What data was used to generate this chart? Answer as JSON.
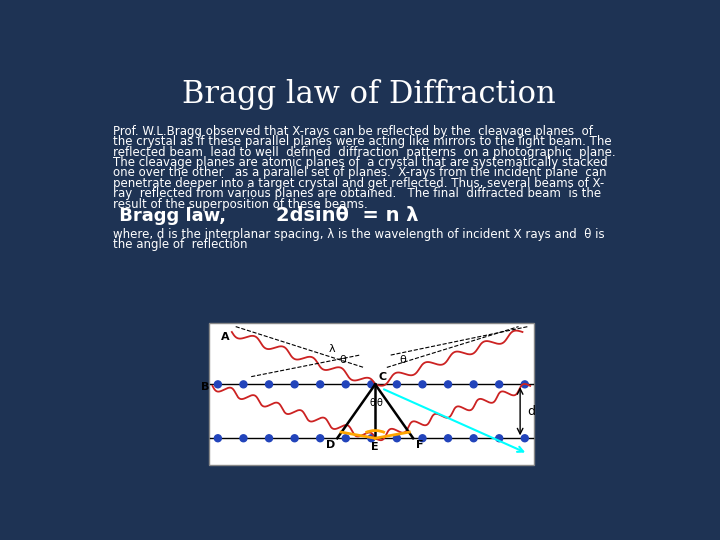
{
  "title": "Bragg law of Diffraction",
  "title_fontsize": 22,
  "title_color": "white",
  "bg_color": "#1e3354",
  "body_lines": [
    "Prof. W.L.Bragg observed that X-rays can be reflected by the  cleavage planes  of",
    "the crystal as if these parallel planes were acting like mirrors to the light beam. The",
    "reflected beam  lead to well  defined  diffraction  patterns  on a photographic  plane.",
    "The cleavage planes are atomic planes of  a crystal that are systematically stacked",
    "one over the other   as a parallel set of planes.  X-rays from the incident plane  can",
    "penetrate deeper into a target crystal and get reflected. Thus, several beams of X-",
    "ray  reflected from various planes are obtained.   The final  diffracted beam  is the",
    "result of the superposition of these beams."
  ],
  "body_fontsize": 8.5,
  "bragg_law_label": " Bragg law,",
  "bragg_law_formula": "2dsinθ  = n λ",
  "formula_fontsize": 13,
  "where_lines": [
    "where, d is the interplanar spacing, λ is the wavelength of incident X rays and  θ is",
    "the angle of  reflection"
  ],
  "where_fontsize": 8.5,
  "text_color": "white",
  "bg_color2": "#1e3a5f"
}
